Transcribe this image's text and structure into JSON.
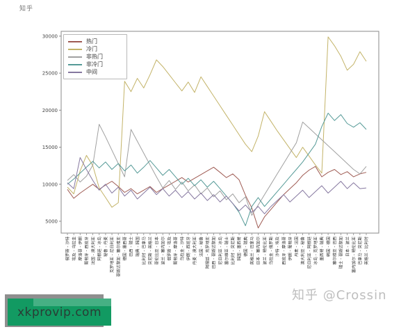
{
  "page": {
    "background": "#ffffff"
  },
  "watermarks": {
    "top_left_logo": "知乎",
    "zhihu_credit": "知乎 @Crossin",
    "site_badge": "xkprovip.com",
    "site_badge_color": "#129a62"
  },
  "chart_data": {
    "type": "line",
    "title": "",
    "xlabel": "",
    "ylabel": "",
    "ylim": [
      3400,
      30650
    ],
    "yticks": [
      5000,
      10000,
      15000,
      20000,
      25000,
      30000
    ],
    "grid": false,
    "legend_position": "upper-left",
    "categories": [
      "俄罗斯 - 沙特",
      "埃及 - 乌拉圭",
      "摩洛哥 - 伊朗",
      "葡萄牙 - 西班牙",
      "法国 - 澳大利亚",
      "阿根廷 - 冰岛",
      "秘鲁 - 丹麦",
      "克罗地亚 - 尼日利亚",
      "哥斯达黎加 - 塞尔维亚",
      "德国 - 墨西哥",
      "巴西 - 瑞士",
      "瑞典 - 韩国",
      "比利时 - 巴拿马",
      "突尼斯 - 英格兰",
      "哥伦比亚 - 日本",
      "波兰 - 塞内加尔",
      "俄罗斯 - 埃及",
      "葡萄牙 - 摩洛哥",
      "乌拉圭 - 沙特",
      "伊朗 - 西班牙",
      "丹麦 - 澳大利亚",
      "法国 - 秘鲁",
      "阿根廷 - 克罗地亚",
      "巴西 - 哥斯达黎加",
      "尼日利亚 - 冰岛",
      "塞尔维亚 - 瑞士",
      "比利时 - 突尼斯",
      "韩国 - 墨西哥",
      "德国 - 瑞典",
      "英格兰 - 巴拿马",
      "日本 - 塞内加尔",
      "波兰 - 哥伦比亚",
      "乌拉圭 - 俄罗斯",
      "沙特 - 埃及",
      "西班牙 - 摩洛哥",
      "伊朗 - 葡萄牙",
      "丹麦 - 法国",
      "澳大利亚 - 秘鲁",
      "尼日利亚 - 阿根廷",
      "冰岛 - 克罗地亚",
      "墨西哥 - 瑞典",
      "韩国 - 德国",
      "塞尔维亚 - 巴西",
      "瑞士 - 哥斯达黎加",
      "日本 - 波兰",
      "塞内加尔 - 哥伦比亚",
      "巴拿马 - 突尼斯",
      "英格兰 - 比利时"
    ],
    "series": [
      {
        "name": "热门",
        "color": "#9e5a52",
        "values": [
          9300,
          8100,
          8800,
          9400,
          10000,
          9300,
          9900,
          10400,
          9700,
          8900,
          9400,
          8700,
          9200,
          9700,
          8900,
          9400,
          9900,
          10400,
          10900,
          10300,
          10800,
          11300,
          11800,
          12300,
          11600,
          10900,
          11400,
          10600,
          8500,
          6800,
          4100,
          5600,
          6600,
          7600,
          8600,
          9400,
          10200,
          11200,
          11900,
          12400,
          11000,
          11600,
          12000,
          11300,
          11700,
          11000,
          11400,
          11600
        ]
      },
      {
        "name": "冷门",
        "color": "#c3b368",
        "values": [
          9600,
          8700,
          11800,
          13900,
          12500,
          9500,
          8200,
          6900,
          7500,
          23900,
          22500,
          24300,
          23000,
          24800,
          26800,
          25900,
          24800,
          23700,
          22600,
          23800,
          22400,
          24500,
          23200,
          21900,
          20600,
          19300,
          18000,
          16700,
          15400,
          14400,
          16500,
          19800,
          18500,
          17200,
          16000,
          14800,
          13600,
          15000,
          13800,
          12600,
          11500,
          29900,
          28700,
          27300,
          25400,
          26200,
          27900,
          26600
        ]
      },
      {
        "name": "非热门",
        "color": "#a0a0a0",
        "values": [
          10500,
          11300,
          10300,
          11100,
          12600,
          18100,
          16400,
          14600,
          12800,
          11000,
          17400,
          15800,
          14200,
          12600,
          11000,
          9500,
          10500,
          9300,
          10300,
          9100,
          9900,
          8700,
          9500,
          8300,
          9100,
          7900,
          8700,
          7500,
          8300,
          5800,
          7200,
          8600,
          10000,
          11400,
          12800,
          14200,
          15600,
          18400,
          17600,
          16800,
          16000,
          15200,
          14400,
          13600,
          12800,
          12000,
          11400,
          12400
        ]
      },
      {
        "name": "非冷门",
        "color": "#559a97",
        "values": [
          10000,
          10700,
          11500,
          12300,
          13100,
          12200,
          13000,
          12000,
          12800,
          11800,
          12600,
          11500,
          12300,
          13200,
          12200,
          11200,
          12000,
          11000,
          10000,
          10800,
          9800,
          10600,
          9600,
          10400,
          9400,
          8400,
          7400,
          6200,
          4400,
          7000,
          8200,
          7000,
          8000,
          9000,
          10000,
          11000,
          12000,
          13000,
          14200,
          15400,
          17800,
          19600,
          18600,
          19400,
          18200,
          17700,
          18300,
          17400
        ]
      },
      {
        "name": "中间",
        "color": "#8678a0",
        "values": [
          10200,
          9400,
          13600,
          12000,
          10500,
          9200,
          10000,
          8800,
          9600,
          8400,
          9200,
          8000,
          8800,
          9600,
          8600,
          9400,
          8400,
          9200,
          8200,
          9000,
          8000,
          8800,
          7800,
          8600,
          7600,
          8400,
          7400,
          6400,
          7200,
          6200,
          7000,
          6000,
          7000,
          7800,
          8600,
          7600,
          8400,
          9200,
          8200,
          9000,
          9800,
          8800,
          9600,
          10400,
          9400,
          10200,
          9400,
          9500
        ]
      }
    ]
  }
}
